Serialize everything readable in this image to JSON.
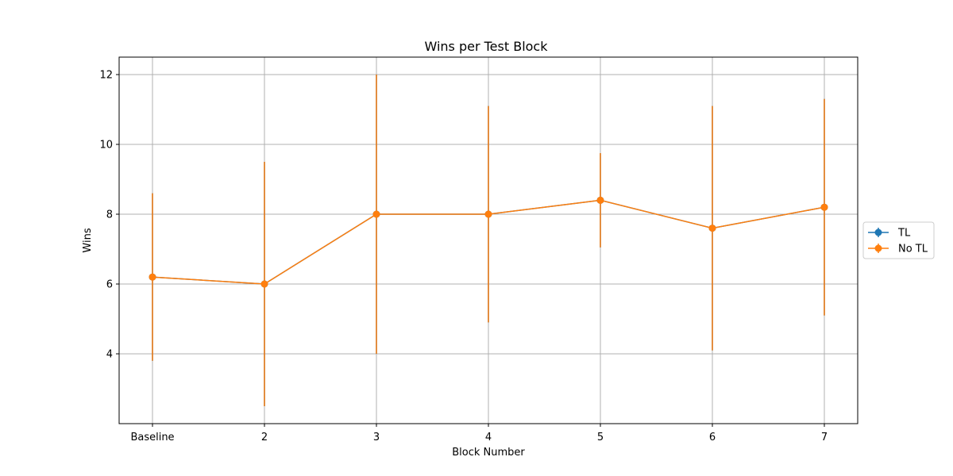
{
  "chart_data": {
    "type": "line",
    "title": "Wins per Test Block",
    "xlabel": "Block Number",
    "ylabel": "Wins",
    "categories": [
      "Baseline",
      "2",
      "3",
      "4",
      "5",
      "6",
      "7"
    ],
    "yticks": [
      "4",
      "6",
      "8",
      "10",
      "12"
    ],
    "ylim": [
      2.0,
      12.5
    ],
    "grid": true,
    "legend_position": "center-right, outside plot",
    "series": [
      {
        "name": "TL",
        "color": "#1f77b4",
        "marker": "circle",
        "values": [
          6.2,
          6.0,
          8.0,
          8.0,
          8.4,
          7.6,
          8.2
        ],
        "error_low": [
          3.8,
          2.5,
          4.0,
          4.9,
          7.05,
          4.1,
          5.1
        ],
        "error_high": [
          8.6,
          9.5,
          12.0,
          11.1,
          9.75,
          11.1,
          11.3
        ]
      },
      {
        "name": "No TL",
        "color": "#ff7f0e",
        "marker": "circle",
        "values": [
          6.2,
          6.0,
          8.0,
          8.0,
          8.4,
          7.6,
          8.2
        ],
        "error_low": [
          3.8,
          2.5,
          4.0,
          4.9,
          7.05,
          4.1,
          5.1
        ],
        "error_high": [
          8.6,
          9.5,
          12.0,
          11.1,
          9.75,
          11.1,
          11.3
        ]
      }
    ]
  }
}
